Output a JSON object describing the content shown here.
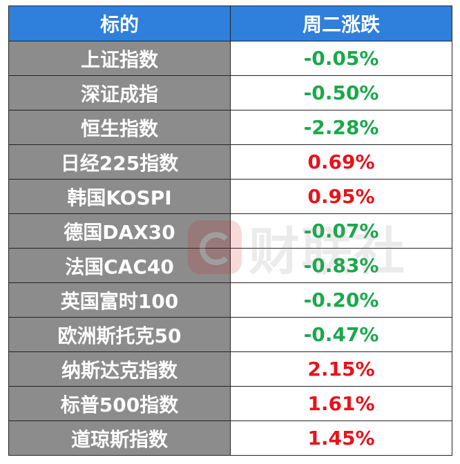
{
  "header": {
    "col_name": "标的",
    "col_change": "周二涨跌"
  },
  "rows": [
    {
      "name": "上证指数",
      "change": "-0.05%",
      "direction": "down"
    },
    {
      "name": "深证成指",
      "change": "-0.50%",
      "direction": "down"
    },
    {
      "name": "恒生指数",
      "change": "-2.28%",
      "direction": "down"
    },
    {
      "name": "日经225指数",
      "change": "0.69%",
      "direction": "up"
    },
    {
      "name": "韩国KOSPI",
      "change": "0.95%",
      "direction": "up"
    },
    {
      "name": "德国DAX30",
      "change": "-0.07%",
      "direction": "down"
    },
    {
      "name": "法国CAC40",
      "change": "-0.83%",
      "direction": "down"
    },
    {
      "name": "英国富时100",
      "change": "-0.20%",
      "direction": "down"
    },
    {
      "name": "欧洲斯托克50",
      "change": "-0.47%",
      "direction": "down"
    },
    {
      "name": "纳斯达克指数",
      "change": "2.15%",
      "direction": "up"
    },
    {
      "name": "标普500指数",
      "change": "1.61%",
      "direction": "up"
    },
    {
      "name": "道琼斯指数",
      "change": "1.45%",
      "direction": "up"
    }
  ],
  "watermark": {
    "text": "财联社",
    "icon": "cailianshe-logo-icon"
  },
  "colors": {
    "header_bg": "#2f7fdc",
    "name_bg": "#8c8c8c",
    "up": "#e8121c",
    "down": "#1aa84c"
  }
}
